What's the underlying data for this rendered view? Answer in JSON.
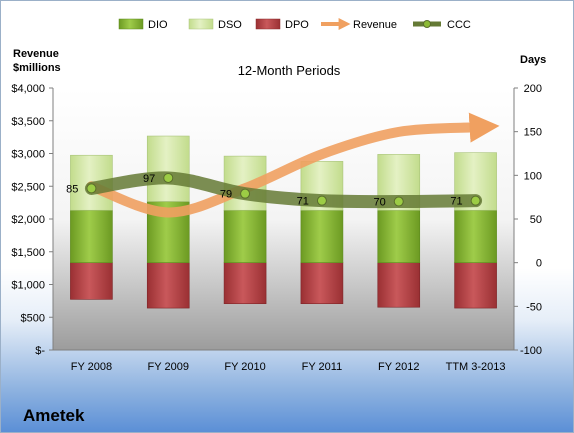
{
  "chart_data": {
    "type": "bar",
    "title": "12-Month Periods",
    "company": "Ametek",
    "categories": [
      "FY 2008",
      "FY 2009",
      "FY 2010",
      "FY 2011",
      "FY 2012",
      "TTM 3-2013"
    ],
    "y_left": {
      "label_line1": "Revenue",
      "label_line2": "$millions",
      "range": [
        0,
        4000
      ],
      "ticks": [
        "$-",
        "$500",
        "$1,000",
        "$1,500",
        "$2,000",
        "$2,500",
        "$3,000",
        "$3,500",
        "$4,000"
      ]
    },
    "y_right": {
      "label": "Days",
      "range": [
        -100,
        200
      ],
      "ticks": [
        "-100",
        "-50",
        "0",
        "50",
        "100",
        "150",
        "200"
      ]
    },
    "legend": [
      "DIO",
      "DSO",
      "DPO",
      "Revenue",
      "CCC"
    ],
    "legend_placement": "top",
    "series": [
      {
        "name": "DIO",
        "axis": "days",
        "color": "#8dbb35",
        "values": [
          60,
          70,
          60,
          60,
          60,
          60
        ]
      },
      {
        "name": "DSO",
        "axis": "days",
        "color": "#d2e6a8",
        "values": [
          63,
          75,
          62,
          56,
          64,
          66
        ]
      },
      {
        "name": "DPO",
        "axis": "days",
        "color": "#b94548",
        "values": [
          -42,
          -52,
          -47,
          -47,
          -51,
          -52
        ]
      },
      {
        "name": "Revenue",
        "axis": "revenue",
        "color": "#f0a060",
        "values": [
          2500,
          2100,
          2470,
          2990,
          3330,
          3400
        ]
      },
      {
        "name": "CCC",
        "axis": "days",
        "color": "#657a35",
        "values": [
          85,
          97,
          79,
          71,
          70,
          71
        ]
      }
    ],
    "data_labels": [
      "85",
      "97",
      "79",
      "71",
      "70",
      "71"
    ],
    "grid": false
  }
}
